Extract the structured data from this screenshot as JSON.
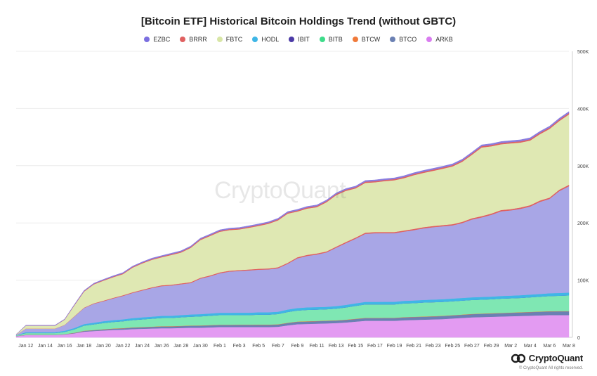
{
  "chart_data": {
    "type": "area",
    "stacked": true,
    "title": "[Bitcoin ETF] Historical Bitcoin Holdings Trend (without GBTC)",
    "xlabel": "",
    "ylabel": "",
    "ylim": [
      0,
      500000
    ],
    "y_ticks": [
      0,
      100000,
      200000,
      300000,
      400000,
      500000
    ],
    "y_tick_labels": [
      "0",
      "100K",
      "200K",
      "300K",
      "400K",
      "500K"
    ],
    "y_axis_position": "right",
    "grid": true,
    "legend_position": "top",
    "x_tick_labels": [
      "Jan 12",
      "Jan 14",
      "Jan 16",
      "Jan 18",
      "Jan 20",
      "Jan 22",
      "Jan 24",
      "Jan 26",
      "Jan 28",
      "Jan 30",
      "Feb 1",
      "Feb 3",
      "Feb 5",
      "Feb 7",
      "Feb 9",
      "Feb 11",
      "Feb 13",
      "Feb 15",
      "Feb 17",
      "Feb 19",
      "Feb 21",
      "Feb 23",
      "Feb 25",
      "Feb 27",
      "Feb 29",
      "Mar 2",
      "Mar 4",
      "Mar 6",
      "Mar 8"
    ],
    "x": [
      "Jan 11",
      "Jan 12",
      "Jan 13",
      "Jan 14",
      "Jan 15",
      "Jan 16",
      "Jan 17",
      "Jan 18",
      "Jan 19",
      "Jan 20",
      "Jan 21",
      "Jan 22",
      "Jan 23",
      "Jan 24",
      "Jan 25",
      "Jan 26",
      "Jan 27",
      "Jan 28",
      "Jan 29",
      "Jan 30",
      "Jan 31",
      "Feb 1",
      "Feb 2",
      "Feb 3",
      "Feb 4",
      "Feb 5",
      "Feb 6",
      "Feb 7",
      "Feb 8",
      "Feb 9",
      "Feb 10",
      "Feb 11",
      "Feb 12",
      "Feb 13",
      "Feb 14",
      "Feb 15",
      "Feb 16",
      "Feb 17",
      "Feb 18",
      "Feb 19",
      "Feb 20",
      "Feb 21",
      "Feb 22",
      "Feb 23",
      "Feb 24",
      "Feb 25",
      "Feb 26",
      "Feb 27",
      "Feb 28",
      "Feb 29",
      "Mar 1",
      "Mar 2",
      "Mar 3",
      "Mar 4",
      "Mar 5",
      "Mar 6",
      "Mar 7",
      "Mar 8"
    ],
    "series": [
      {
        "name": "ARKB",
        "color": "#e39bf2",
        "values": [
          2000,
          4000,
          4000,
          4000,
          4000,
          5000,
          7000,
          10000,
          11000,
          12000,
          13000,
          13500,
          14500,
          15000,
          15500,
          16000,
          16000,
          16500,
          17000,
          17000,
          17500,
          18000,
          18000,
          18000,
          18000,
          18000,
          18000,
          18500,
          21000,
          23000,
          23500,
          24000,
          24500,
          25000,
          26000,
          27500,
          29000,
          29000,
          29000,
          29000,
          30000,
          30500,
          31000,
          31500,
          32000,
          33000,
          34000,
          35000,
          35500,
          36000,
          36500,
          37000,
          37500,
          38000,
          38500,
          39000,
          39000,
          39000
        ]
      },
      {
        "name": "BTCO",
        "color": "#6b80b3",
        "values": [
          300,
          400,
          400,
          400,
          400,
          500,
          800,
          1200,
          1500,
          1800,
          2000,
          2200,
          2400,
          2600,
          2800,
          3000,
          3100,
          3200,
          3300,
          3400,
          3500,
          3600,
          3600,
          3700,
          3700,
          3800,
          3800,
          3900,
          4000,
          4100,
          4200,
          4200,
          4300,
          4400,
          4500,
          4600,
          4700,
          4700,
          4800,
          4800,
          4900,
          5000,
          5000,
          5100,
          5200,
          5300,
          5400,
          5500,
          5600,
          5700,
          5800,
          5900,
          6000,
          6100,
          6200,
          6300,
          6400,
          6500
        ]
      },
      {
        "name": "BTCW",
        "color": "#f07a3a",
        "values": [
          100,
          200,
          200,
          200,
          200,
          200,
          300,
          400,
          400,
          400,
          500,
          500,
          500,
          500,
          500,
          500,
          500,
          500,
          500,
          500,
          500,
          500,
          500,
          500,
          500,
          500,
          500,
          500,
          500,
          500,
          500,
          500,
          500,
          500,
          500,
          500,
          500,
          500,
          500,
          500,
          500,
          500,
          500,
          500,
          500,
          500,
          500,
          500,
          500,
          500,
          500,
          500,
          500,
          500,
          500,
          500,
          500,
          500
        ]
      },
      {
        "name": "BITB",
        "color": "#7fe7b3",
        "values": [
          1000,
          3000,
          3000,
          3000,
          3000,
          4000,
          6000,
          9000,
          10000,
          11000,
          11500,
          12000,
          13000,
          13500,
          14000,
          14500,
          14500,
          15000,
          15500,
          16000,
          16500,
          17000,
          17000,
          17000,
          17000,
          17500,
          17500,
          18000,
          19000,
          19500,
          20000,
          20000,
          20000,
          20500,
          21500,
          22500,
          23500,
          23500,
          23500,
          23500,
          24000,
          24000,
          24500,
          24500,
          24500,
          24500,
          24500,
          24500,
          24500,
          24500,
          25000,
          25000,
          25000,
          25500,
          26000,
          26500,
          27000,
          27500
        ]
      },
      {
        "name": "IBIT",
        "color": "#6649c4",
        "values": [
          0,
          0,
          0,
          0,
          0,
          0,
          0,
          0,
          0,
          0,
          0,
          0,
          0,
          0,
          0,
          0,
          0,
          0,
          0,
          0,
          0,
          0,
          0,
          0,
          0,
          0,
          0,
          0,
          0,
          0,
          0,
          0,
          0,
          0,
          0,
          0,
          0,
          0,
          0,
          0,
          0,
          0,
          0,
          0,
          0,
          0,
          0,
          0,
          0,
          0,
          0,
          0,
          0,
          0,
          0,
          0,
          0,
          0
        ]
      },
      {
        "name": "HODL",
        "color": "#3fb6e6",
        "values": [
          300,
          1500,
          1500,
          1500,
          1500,
          1800,
          2200,
          2600,
          2800,
          3000,
          3100,
          3200,
          3300,
          3400,
          3500,
          3600,
          3600,
          3700,
          3700,
          3800,
          3800,
          3900,
          3900,
          3900,
          3900,
          4000,
          4000,
          4000,
          4100,
          4100,
          4200,
          4200,
          4200,
          4300,
          4300,
          4400,
          4400,
          4400,
          4400,
          4400,
          4500,
          4500,
          4500,
          4500,
          4500,
          4500,
          4500,
          4500,
          4600,
          4600,
          4600,
          4600,
          4700,
          4700,
          4700,
          4800,
          4800,
          4800
        ]
      },
      {
        "name": "EZBC",
        "color": "#a8a6e6",
        "values": [
          800,
          6000,
          6000,
          6000,
          6000,
          10000,
          20000,
          28000,
          33000,
          35000,
          38000,
          41000,
          44000,
          47000,
          50000,
          52000,
          53000,
          54000,
          55000,
          62000,
          65000,
          69000,
          72000,
          73000,
          74000,
          74500,
          75000,
          76000,
          80000,
          87000,
          90000,
          92000,
          95000,
          102000,
          108000,
          113000,
          119000,
          120000,
          120000,
          120000,
          121000,
          123000,
          125000,
          126500,
          127500,
          128000,
          131000,
          136000,
          139000,
          143000,
          148000,
          149000,
          151000,
          154000,
          161000,
          165000,
          178000,
          186000
        ]
      },
      {
        "name": "BRRR",
        "color": "#e06060",
        "values": [
          100,
          300,
          300,
          300,
          300,
          400,
          600,
          800,
          900,
          1000,
          1100,
          1200,
          1200,
          1300,
          1300,
          1400,
          1400,
          1400,
          1500,
          1500,
          1500,
          1600,
          1600,
          1600,
          1600,
          1600,
          1700,
          1700,
          1700,
          1800,
          1800,
          1800,
          1800,
          1900,
          1900,
          1900,
          2000,
          2000,
          2000,
          2000,
          2000,
          2000,
          2100,
          2100,
          2100,
          2100,
          2100,
          2200,
          2200,
          2200,
          2200,
          2200,
          2300,
          2300,
          2300,
          2300,
          2400,
          2400
        ]
      },
      {
        "name": "FBTC",
        "color": "#dfe8b3",
        "values": [
          500,
          5000,
          5000,
          5000,
          5000,
          9000,
          19000,
          28000,
          33000,
          35000,
          36000,
          37000,
          43000,
          46000,
          48000,
          49000,
          52000,
          54000,
          60000,
          66000,
          69000,
          71000,
          71000,
          71000,
          73000,
          75000,
          78000,
          82000,
          86000,
          80000,
          81000,
          81000,
          86000,
          90000,
          89500,
          86000,
          87000,
          87000,
          89000,
          90500,
          91500,
          94000,
          95000,
          96500,
          98500,
          101000,
          105000,
          111000,
          120000,
          117500,
          115000,
          115000,
          113500,
          113000,
          116000,
          120000,
          120000,
          123000
        ]
      },
      {
        "name": "BRRR-top",
        "color": "#e06060",
        "values": [
          100,
          300,
          300,
          300,
          300,
          400,
          600,
          800,
          900,
          1000,
          1100,
          1200,
          1200,
          1300,
          1300,
          1400,
          1400,
          1400,
          1500,
          1500,
          1500,
          1600,
          1600,
          1600,
          1600,
          1600,
          1700,
          1700,
          1700,
          1800,
          1800,
          1800,
          1800,
          1900,
          1900,
          1900,
          2000,
          2000,
          2000,
          2000,
          2000,
          2000,
          2100,
          2100,
          2100,
          2100,
          2100,
          2200,
          2200,
          2200,
          2200,
          2200,
          2300,
          2300,
          2300,
          2300,
          2400,
          2400
        ]
      },
      {
        "name": "EZBC-top",
        "color": "#8a7de0",
        "values": [
          0,
          500,
          500,
          500,
          500,
          600,
          800,
          1000,
          1100,
          1200,
          1300,
          1300,
          1400,
          1400,
          1500,
          1500,
          1500,
          1600,
          1600,
          1600,
          1700,
          1700,
          1700,
          1700,
          1800,
          1800,
          1800,
          1800,
          1900,
          1900,
          1900,
          2000,
          2000,
          2000,
          2000,
          2100,
          2100,
          2100,
          2100,
          2100,
          2200,
          2200,
          2200,
          2200,
          2300,
          2300,
          2300,
          2300,
          2400,
          2400,
          2400,
          2400,
          2500,
          2500,
          2500,
          2500,
          2600,
          2600
        ]
      }
    ],
    "legend": [
      {
        "name": "EZBC",
        "color": "#7b6fe0"
      },
      {
        "name": "BRRR",
        "color": "#e06060"
      },
      {
        "name": "FBTC",
        "color": "#d8e6a6"
      },
      {
        "name": "HODL",
        "color": "#3fb6e6"
      },
      {
        "name": "IBIT",
        "color": "#4b3aa6"
      },
      {
        "name": "BITB",
        "color": "#3edc8a"
      },
      {
        "name": "BTCW",
        "color": "#f07a3a"
      },
      {
        "name": "BTCO",
        "color": "#6b80b3"
      },
      {
        "name": "ARKB",
        "color": "#d97cf0"
      }
    ]
  },
  "watermark": "CryptoQuant",
  "brand": {
    "name": "CryptoQuant",
    "copyright": "© CryptoQuant All rights reserved."
  }
}
